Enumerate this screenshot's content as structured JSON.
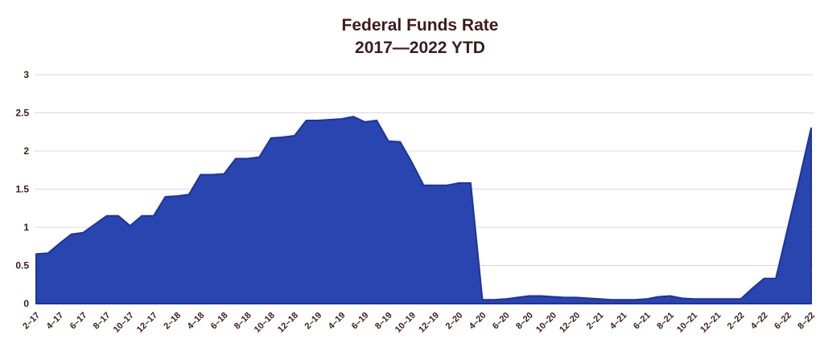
{
  "chart_data": {
    "type": "area",
    "title": "Federal Funds Rate",
    "subtitle": "2017—2022 YTD",
    "series": [
      {
        "name": "Federal Funds Rate (%)",
        "x": [
          "2-17",
          "3-17",
          "4-17",
          "5-17",
          "6-17",
          "7-17",
          "8-17",
          "9-17",
          "10-17",
          "11-17",
          "12-17",
          "1-18",
          "2-18",
          "3-18",
          "4-18",
          "5-18",
          "6-18",
          "7-18",
          "8-18",
          "9-18",
          "10-18",
          "11-18",
          "12-18",
          "1-19",
          "2-19",
          "3-19",
          "4-19",
          "5-19",
          "6-19",
          "7-19",
          "8-19",
          "9-19",
          "10-19",
          "11-19",
          "12-19",
          "1-20",
          "2-20",
          "3-20",
          "4-20",
          "5-20",
          "6-20",
          "7-20",
          "8-20",
          "9-20",
          "10-20",
          "11-20",
          "12-20",
          "1-21",
          "2-21",
          "3-21",
          "4-21",
          "5-21",
          "6-21",
          "7-21",
          "8-21",
          "9-21",
          "10-21",
          "11-21",
          "12-21",
          "1-22",
          "2-22",
          "3-22",
          "4-22",
          "5-22",
          "6-22",
          "7-22",
          "8-22"
        ],
        "values": [
          0.65,
          0.66,
          0.79,
          0.91,
          0.93,
          1.04,
          1.15,
          1.15,
          1.02,
          1.15,
          1.15,
          1.4,
          1.41,
          1.43,
          1.69,
          1.69,
          1.7,
          1.9,
          1.9,
          1.92,
          2.17,
          2.18,
          2.2,
          2.4,
          2.4,
          2.41,
          2.42,
          2.45,
          2.38,
          2.4,
          2.13,
          2.12,
          1.85,
          1.55,
          1.55,
          1.55,
          1.58,
          1.58,
          0.05,
          0.05,
          0.06,
          0.08,
          0.1,
          0.1,
          0.09,
          0.08,
          0.08,
          0.07,
          0.06,
          0.05,
          0.05,
          0.05,
          0.06,
          0.09,
          0.1,
          0.07,
          0.06,
          0.06,
          0.06,
          0.06,
          0.06,
          0.2,
          0.33,
          0.33,
          0.98,
          1.63,
          2.3
        ]
      }
    ],
    "x_tick_labels": [
      "2–17",
      "4–17",
      "6–17",
      "8–17",
      "10–17",
      "12–17",
      "2–18",
      "4–18",
      "6–18",
      "8–18",
      "10–18",
      "12–18",
      "2–19",
      "4–19",
      "6–19",
      "8–19",
      "10–19",
      "12–19",
      "2–20",
      "4–20",
      "6–20",
      "8–20",
      "10–20",
      "12–20",
      "2–21",
      "4–21",
      "6–21",
      "8–21",
      "10–21",
      "12–21",
      "2–22",
      "4–22",
      "6–22",
      "8–22"
    ],
    "y_tick_labels": [
      "3",
      "2.5",
      "2",
      "1.5",
      "1",
      "0.5",
      "0"
    ],
    "ylim": [
      0,
      3
    ],
    "xlabel": "",
    "ylabel": "",
    "grid": "horizontal-only",
    "legend_position": "none",
    "colors": {
      "area_fill": "#2945af",
      "area_stroke": "#1d33a0",
      "gridline": "#d9d9d9",
      "text": "#3d1b1b",
      "background": "#ffffff"
    }
  }
}
